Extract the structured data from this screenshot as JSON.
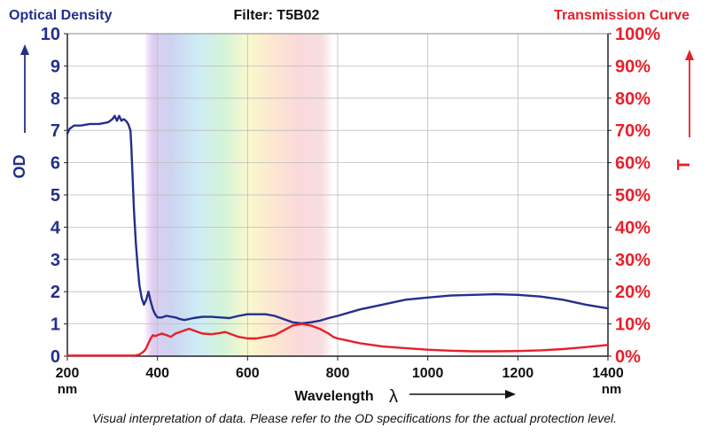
{
  "header": {
    "left_title": "Optical Density",
    "center_title": "Filter: T5B02",
    "right_title": "Transmission Curve"
  },
  "footnote": "Visual interpretation of data. Please refer to the OD specifications for the actual protection level.",
  "colors": {
    "od": "#232f8c",
    "transmission": "#e8202a",
    "grid": "#bdbdbd",
    "axis": "#222222"
  },
  "chart_data": {
    "type": "line",
    "title": "Filter: T5B02",
    "xlabel": "Wavelength",
    "xlabel_symbol": "λ",
    "x_unit": "nm",
    "xlim": [
      200,
      1400
    ],
    "x_ticks": [
      "200",
      "400",
      "600",
      "800",
      "1000",
      "1200",
      "1400"
    ],
    "y_left": {
      "label": "OD",
      "title": "Optical Density",
      "lim": [
        0,
        10
      ],
      "ticks": [
        "0",
        "1",
        "2",
        "3",
        "4",
        "5",
        "6",
        "7",
        "8",
        "9",
        "10"
      ]
    },
    "y_right": {
      "label": "T",
      "title": "Transmission Curve",
      "lim": [
        0,
        100
      ],
      "ticks": [
        "0%",
        "10%",
        "20%",
        "30%",
        "40%",
        "50%",
        "60%",
        "70%",
        "80%",
        "90%",
        "100%"
      ]
    },
    "grid": true,
    "visible_band_nm": [
      370,
      790
    ],
    "series": [
      {
        "name": "OD",
        "axis": "left",
        "color": "#232f8c",
        "x": [
          200,
          205,
          215,
          230,
          250,
          270,
          290,
          300,
          305,
          310,
          315,
          320,
          325,
          330,
          335,
          340,
          342,
          345,
          348,
          352,
          356,
          360,
          365,
          370,
          375,
          380,
          385,
          390,
          395,
          400,
          410,
          420,
          440,
          450,
          460,
          480,
          500,
          520,
          540,
          560,
          580,
          600,
          620,
          640,
          660,
          680,
          700,
          720,
          740,
          760,
          780,
          800,
          850,
          900,
          950,
          1000,
          1050,
          1100,
          1150,
          1200,
          1250,
          1300,
          1350,
          1400
        ],
        "values": [
          6.9,
          7.05,
          7.15,
          7.15,
          7.2,
          7.2,
          7.25,
          7.35,
          7.45,
          7.3,
          7.45,
          7.3,
          7.35,
          7.3,
          7.2,
          7.0,
          6.5,
          5.5,
          4.5,
          3.5,
          2.8,
          2.2,
          1.8,
          1.6,
          1.75,
          2.0,
          1.7,
          1.45,
          1.3,
          1.2,
          1.2,
          1.25,
          1.2,
          1.15,
          1.12,
          1.18,
          1.22,
          1.22,
          1.2,
          1.18,
          1.25,
          1.3,
          1.3,
          1.3,
          1.25,
          1.15,
          1.05,
          1.02,
          1.05,
          1.1,
          1.18,
          1.25,
          1.45,
          1.6,
          1.75,
          1.82,
          1.88,
          1.9,
          1.92,
          1.9,
          1.85,
          1.75,
          1.6,
          1.48
        ]
      },
      {
        "name": "T",
        "axis": "right",
        "color": "#e8202a",
        "x": [
          200,
          250,
          300,
          350,
          360,
          365,
          370,
          375,
          380,
          385,
          390,
          395,
          400,
          410,
          420,
          430,
          440,
          450,
          460,
          470,
          480,
          490,
          500,
          520,
          540,
          550,
          560,
          580,
          600,
          620,
          640,
          660,
          680,
          700,
          720,
          740,
          760,
          780,
          790,
          800,
          850,
          900,
          950,
          1000,
          1050,
          1100,
          1150,
          1200,
          1250,
          1300,
          1350,
          1400
        ],
        "values": [
          0.2,
          0.2,
          0.2,
          0.2,
          0.5,
          1.0,
          1.5,
          2.5,
          4.0,
          5.5,
          6.5,
          6.2,
          6.5,
          7.0,
          6.5,
          6.0,
          7.0,
          7.5,
          8.0,
          8.5,
          8.0,
          7.5,
          7.0,
          6.8,
          7.2,
          7.5,
          7.0,
          6.0,
          5.5,
          5.5,
          6.0,
          6.5,
          8.0,
          9.5,
          10.0,
          9.5,
          8.5,
          7.0,
          6.0,
          5.5,
          4.0,
          3.0,
          2.5,
          2.0,
          1.7,
          1.5,
          1.5,
          1.6,
          1.8,
          2.2,
          2.8,
          3.5
        ]
      }
    ]
  }
}
